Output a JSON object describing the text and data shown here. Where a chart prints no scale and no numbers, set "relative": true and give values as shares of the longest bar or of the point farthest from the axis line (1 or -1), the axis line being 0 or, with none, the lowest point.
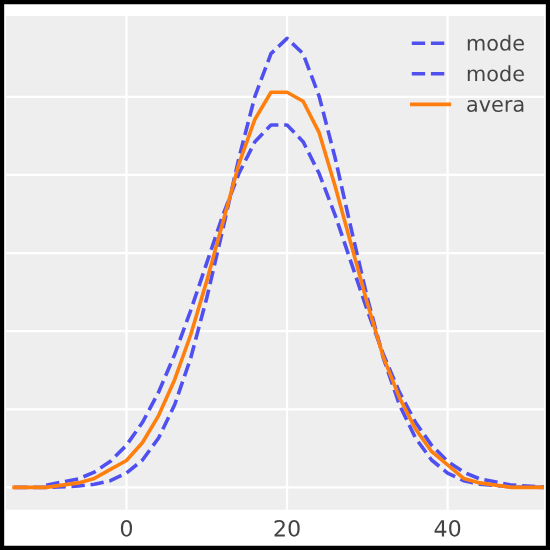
{
  "chart_data": {
    "type": "line",
    "relative": true,
    "x": [
      -14,
      -10,
      -6,
      -4,
      -2,
      0,
      2,
      4,
      6,
      8,
      10,
      12,
      14,
      16,
      18,
      20,
      22,
      24,
      26,
      28,
      30,
      32,
      34,
      36,
      38,
      40,
      42,
      44,
      48,
      52
    ],
    "xlim": [
      -15,
      52
    ],
    "xticks": [
      0,
      20,
      40
    ],
    "grid": true,
    "legend": "top right",
    "tick_labels": "x",
    "series": [
      {
        "name": "mode",
        "color": "#5050f0",
        "line_style": "dashed",
        "values": [
          0.0,
          0.0,
          0.003,
          0.007,
          0.015,
          0.032,
          0.061,
          0.11,
          0.184,
          0.288,
          0.422,
          0.575,
          0.733,
          0.871,
          0.966,
          1.0,
          0.966,
          0.871,
          0.733,
          0.575,
          0.422,
          0.288,
          0.184,
          0.11,
          0.061,
          0.032,
          0.015,
          0.007,
          0.001,
          0.0
        ]
      },
      {
        "name": "mode",
        "color": "#5050f0",
        "line_style": "dashed",
        "values": [
          null,
          0.005,
          0.019,
          0.034,
          0.058,
          0.094,
          0.145,
          0.212,
          0.296,
          0.394,
          0.5,
          0.606,
          0.699,
          0.77,
          0.807,
          0.807,
          0.77,
          0.699,
          0.606,
          0.5,
          0.394,
          0.296,
          0.212,
          0.145,
          0.094,
          0.058,
          0.034,
          0.019,
          0.005,
          0.001
        ]
      },
      {
        "name": "avera",
        "color": "#ff7f0e",
        "line_style": "solid",
        "values": [
          0.0,
          0.0,
          0.01,
          0.02,
          0.04,
          0.06,
          0.1,
          0.16,
          0.24,
          0.34,
          0.46,
          0.59,
          0.72,
          0.82,
          0.88,
          0.88,
          0.86,
          0.79,
          0.67,
          0.54,
          0.41,
          0.29,
          0.2,
          0.13,
          0.08,
          0.05,
          0.02,
          0.01,
          0.0,
          0.0
        ]
      }
    ]
  }
}
